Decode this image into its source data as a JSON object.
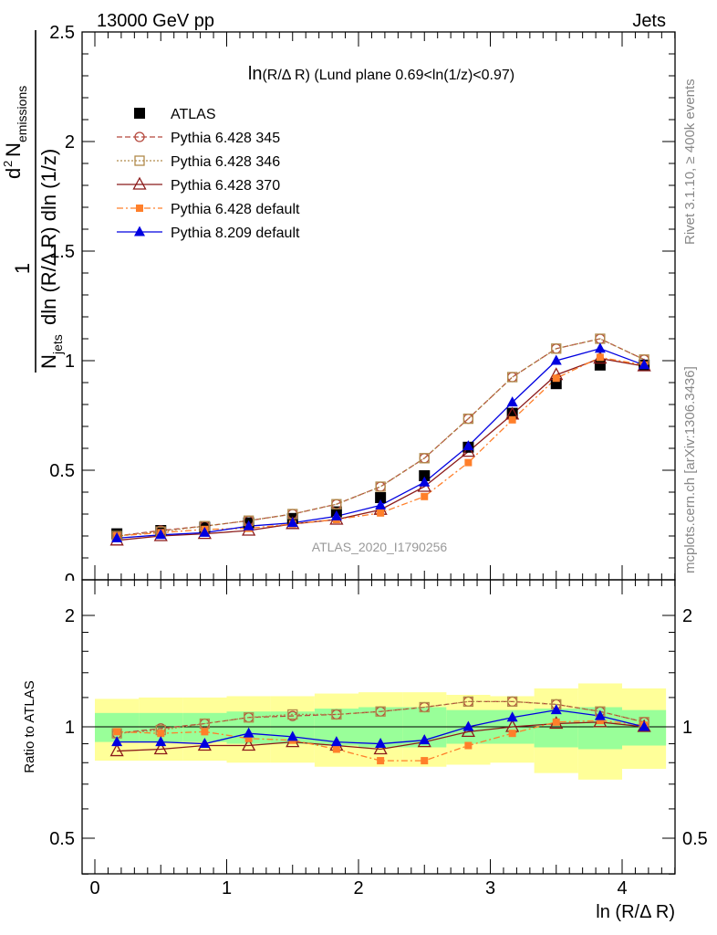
{
  "header": {
    "left": "13000 GeV pp",
    "right": "Jets"
  },
  "side_labels": {
    "rivet": "Rivet 3.1.10, ≥ 400k events",
    "mcplots": "mcplots.cern.ch [arXiv:1306.3436]"
  },
  "watermark": "ATLAS_2020_I1790256",
  "colors": {
    "atlas": "#000000",
    "p345": "#b5483c",
    "p346": "#b08a4a",
    "p370": "#8b1a1a",
    "p6def": "#ff7f2a",
    "p8def": "#0000e0",
    "band_inner": "#99ff99",
    "band_outer": "#ffff99"
  },
  "chart_data": [
    {
      "type": "line",
      "title": "ln(R/Δ R) (Lund plane 0.69<ln(1/z)<0.97)",
      "title_main": "ln",
      "title_sub": "(R/Δ R) (Lund plane 0.69<ln(1/z)<0.97)",
      "ylabel_parts": {
        "one": "1",
        "nsym": "N",
        "nsub": "jets",
        "dpre": "dln (R/Δ R) dln (1/z)",
        "d2": "d",
        "sup2": "2",
        "nnum": "N",
        "emissions": "emissions"
      },
      "xlim": [
        -0.1,
        4.42
      ],
      "ylim": [
        0,
        2.5
      ],
      "yticks": [
        "0.5",
        "1",
        "1.5",
        "2",
        "2.5"
      ],
      "yticks_values": [
        0.5,
        1,
        1.5,
        2,
        2.5
      ],
      "ytick_clipped_zero": "0",
      "x": [
        0.167,
        0.5,
        0.833,
        1.167,
        1.5,
        1.833,
        2.167,
        2.5,
        2.833,
        3.167,
        3.5,
        3.833,
        4.167
      ],
      "series": [
        {
          "key": "atlas",
          "name": "ATLAS",
          "marker": "square",
          "values": [
            0.21,
            0.225,
            0.24,
            0.26,
            0.28,
            0.31,
            0.375,
            0.475,
            0.605,
            0.76,
            0.895,
            0.98,
            0.98
          ]
        },
        {
          "key": "p345",
          "name": "Pythia 6.428 345",
          "marker": "circle-open",
          "dash": "6,3",
          "values": [
            0.2,
            0.225,
            0.245,
            0.27,
            0.3,
            0.345,
            0.425,
            0.555,
            0.735,
            0.925,
            1.055,
            1.1,
            1.005
          ]
        },
        {
          "key": "p346",
          "name": "Pythia 6.428 346",
          "marker": "square-open",
          "dash": "2,2",
          "values": [
            0.2,
            0.22,
            0.245,
            0.27,
            0.3,
            0.345,
            0.425,
            0.555,
            0.735,
            0.925,
            1.055,
            1.1,
            1.005
          ]
        },
        {
          "key": "p370",
          "name": "Pythia 6.428 370",
          "marker": "triangle-open",
          "dash": "",
          "values": [
            0.18,
            0.2,
            0.21,
            0.225,
            0.255,
            0.275,
            0.32,
            0.425,
            0.585,
            0.755,
            0.935,
            1.01,
            0.975
          ]
        },
        {
          "key": "p6def",
          "name": "Pythia 6.428 default",
          "marker": "square-small",
          "dash": "7,3,2,3",
          "values": [
            0.2,
            0.215,
            0.23,
            0.235,
            0.255,
            0.275,
            0.305,
            0.38,
            0.535,
            0.73,
            0.92,
            1.015,
            0.98
          ]
        },
        {
          "key": "p8def",
          "name": "Pythia 8.209 default",
          "marker": "triangle",
          "dash": "",
          "values": [
            0.19,
            0.205,
            0.215,
            0.245,
            0.26,
            0.29,
            0.34,
            0.445,
            0.61,
            0.81,
            1.0,
            1.055,
            0.98
          ]
        }
      ]
    },
    {
      "type": "line",
      "ylabel": "Ratio to ATLAS",
      "xlabel": "ln (R/Δ R)",
      "xticks": [
        "0",
        "1",
        "2",
        "3",
        "4"
      ],
      "xticks_values": [
        0,
        1,
        2,
        3,
        4
      ],
      "ylim": [
        0.35,
        2.3
      ],
      "yticks": [
        "0.5",
        "1",
        "2"
      ],
      "yticks_values": [
        0.5,
        1,
        2
      ],
      "bins": [
        [
          0,
          0.333
        ],
        [
          0.333,
          0.667
        ],
        [
          0.667,
          1.0
        ],
        [
          1.0,
          1.333
        ],
        [
          1.333,
          1.667
        ],
        [
          1.667,
          2.0
        ],
        [
          2.0,
          2.333
        ],
        [
          2.333,
          2.667
        ],
        [
          2.667,
          3.0
        ],
        [
          3.0,
          3.333
        ],
        [
          3.333,
          3.667
        ],
        [
          3.667,
          4.0
        ],
        [
          4.0,
          4.333
        ]
      ],
      "band_inner": [
        [
          0.91,
          1.09
        ],
        [
          0.91,
          1.09
        ],
        [
          0.91,
          1.09
        ],
        [
          0.9,
          1.1
        ],
        [
          0.9,
          1.1
        ],
        [
          0.89,
          1.12
        ],
        [
          0.88,
          1.13
        ],
        [
          0.88,
          1.13
        ],
        [
          0.9,
          1.11
        ],
        [
          0.9,
          1.11
        ],
        [
          0.88,
          1.12
        ],
        [
          0.87,
          1.13
        ],
        [
          0.89,
          1.11
        ]
      ],
      "band_outer": [
        [
          0.81,
          1.19
        ],
        [
          0.81,
          1.2
        ],
        [
          0.81,
          1.2
        ],
        [
          0.8,
          1.21
        ],
        [
          0.8,
          1.21
        ],
        [
          0.78,
          1.23
        ],
        [
          0.78,
          1.24
        ],
        [
          0.78,
          1.24
        ],
        [
          0.79,
          1.22
        ],
        [
          0.8,
          1.21
        ],
        [
          0.75,
          1.27
        ],
        [
          0.72,
          1.31
        ],
        [
          0.77,
          1.27
        ]
      ],
      "x": [
        0.167,
        0.5,
        0.833,
        1.167,
        1.5,
        1.833,
        2.167,
        2.5,
        2.833,
        3.167,
        3.5,
        3.833,
        4.167
      ],
      "series": [
        {
          "key": "p345",
          "marker": "circle-open",
          "dash": "6,3",
          "values": [
            0.96,
            0.99,
            1.02,
            1.06,
            1.07,
            1.08,
            1.1,
            1.13,
            1.17,
            1.17,
            1.15,
            1.1,
            1.03
          ]
        },
        {
          "key": "p346",
          "marker": "square-open",
          "dash": "2,2",
          "values": [
            0.96,
            0.98,
            1.02,
            1.06,
            1.08,
            1.08,
            1.1,
            1.13,
            1.17,
            1.17,
            1.15,
            1.1,
            1.03
          ]
        },
        {
          "key": "p370",
          "marker": "triangle-open",
          "dash": "",
          "values": [
            0.86,
            0.87,
            0.89,
            0.89,
            0.91,
            0.89,
            0.87,
            0.91,
            0.97,
            1.0,
            1.02,
            1.03,
            1.0
          ]
        },
        {
          "key": "p6def",
          "marker": "square-small",
          "dash": "7,3,2,3",
          "values": [
            0.97,
            0.96,
            0.97,
            0.93,
            0.92,
            0.87,
            0.81,
            0.81,
            0.89,
            0.96,
            1.03,
            1.04,
            1.01
          ]
        },
        {
          "key": "p8def",
          "marker": "triangle",
          "dash": "",
          "values": [
            0.91,
            0.91,
            0.9,
            0.96,
            0.94,
            0.91,
            0.9,
            0.92,
            1.0,
            1.06,
            1.11,
            1.07,
            1.0
          ]
        }
      ]
    }
  ]
}
